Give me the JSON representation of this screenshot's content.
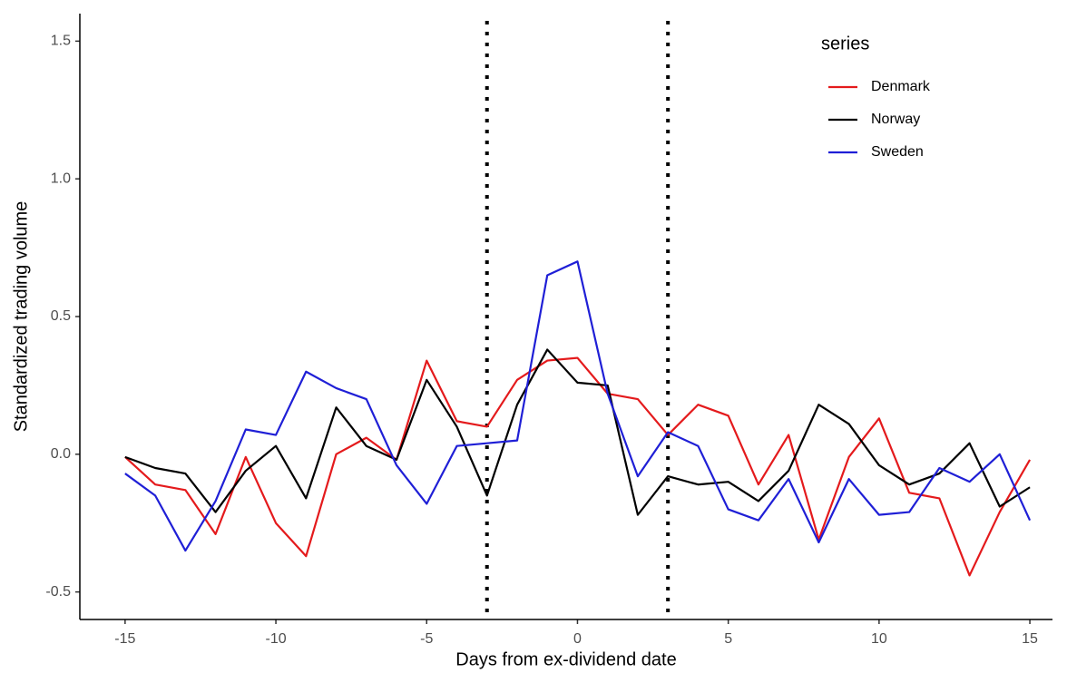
{
  "chart_data": {
    "type": "line",
    "x_label": "Days from ex-dividend date",
    "y_label": "Standardized trading volume",
    "x": [
      -15,
      -14,
      -13,
      -12,
      -11,
      -10,
      -9,
      -8,
      -7,
      -6,
      -5,
      -4,
      -3,
      -2,
      -1,
      0,
      1,
      2,
      3,
      4,
      5,
      6,
      7,
      8,
      9,
      10,
      11,
      12,
      13,
      14,
      15
    ],
    "series": [
      {
        "name": "Denmark",
        "color": "#e41a1c",
        "values": [
          -0.01,
          -0.11,
          -0.13,
          -0.29,
          -0.01,
          -0.25,
          -0.37,
          0.0,
          0.06,
          -0.02,
          0.34,
          0.12,
          0.1,
          0.27,
          0.34,
          0.35,
          0.22,
          0.2,
          0.07,
          0.18,
          0.14,
          -0.11,
          0.07,
          -0.31,
          -0.01,
          0.13,
          -0.14,
          -0.16,
          -0.44,
          -0.21,
          -0.02
        ]
      },
      {
        "name": "Norway",
        "color": "#000000",
        "values": [
          -0.01,
          -0.05,
          -0.07,
          -0.21,
          -0.06,
          0.03,
          -0.16,
          0.17,
          0.03,
          -0.02,
          0.27,
          0.1,
          -0.15,
          0.18,
          0.38,
          0.26,
          0.25,
          -0.22,
          -0.08,
          -0.11,
          -0.1,
          -0.17,
          -0.06,
          0.18,
          0.11,
          -0.04,
          -0.11,
          -0.07,
          0.04,
          -0.19,
          -0.12
        ]
      },
      {
        "name": "Sweden",
        "color": "#1f1fd6",
        "values": [
          -0.07,
          -0.15,
          -0.35,
          -0.17,
          0.09,
          0.07,
          0.3,
          0.24,
          0.2,
          -0.04,
          -0.18,
          0.03,
          0.04,
          0.05,
          0.65,
          0.7,
          0.22,
          -0.08,
          0.08,
          0.03,
          -0.2,
          -0.24,
          -0.09,
          -0.32,
          -0.09,
          -0.22,
          -0.21,
          -0.05,
          -0.1,
          0.0,
          -0.24
        ]
      }
    ],
    "vlines": [
      -3,
      3
    ],
    "xlim": [
      -16.5,
      15.75
    ],
    "ylim": [
      -0.6,
      1.6
    ],
    "xticks": [
      -15,
      -10,
      -5,
      0,
      5,
      10,
      15
    ],
    "yticks": [
      -0.5,
      {
        "value": 0,
        "label": "0.0"
      },
      0.5,
      {
        "value": 1,
        "label": "1.0"
      },
      1.5
    ],
    "legend_title": "series",
    "legend_position": "top-right",
    "grid": false
  }
}
